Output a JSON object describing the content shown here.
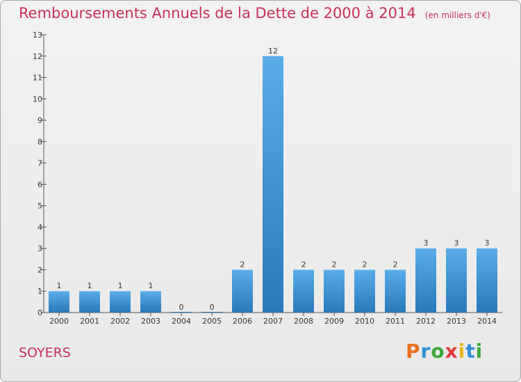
{
  "chart_data": {
    "type": "bar",
    "title": "Remboursements Annuels de la Dette de 2000 à 2014",
    "unit": "(en milliers d'€)",
    "categories": [
      "2000",
      "2001",
      "2002",
      "2003",
      "2004",
      "2005",
      "2006",
      "2007",
      "2008",
      "2009",
      "2010",
      "2011",
      "2012",
      "2013",
      "2014"
    ],
    "values": [
      1,
      1,
      1,
      1,
      0,
      0,
      2,
      12,
      2,
      2,
      2,
      2,
      3,
      3,
      3
    ],
    "ylim": [
      0,
      13
    ],
    "yticks": [
      0,
      1,
      2,
      3,
      4,
      5,
      6,
      7,
      8,
      9,
      10,
      11,
      12,
      13
    ],
    "grid": false,
    "colors": {
      "bar_top": "#5aade8",
      "bar_bottom": "#2a78b8",
      "text": "#c8305a"
    }
  },
  "footer": {
    "commune": "SOYERS",
    "logo": "Proxiti"
  }
}
